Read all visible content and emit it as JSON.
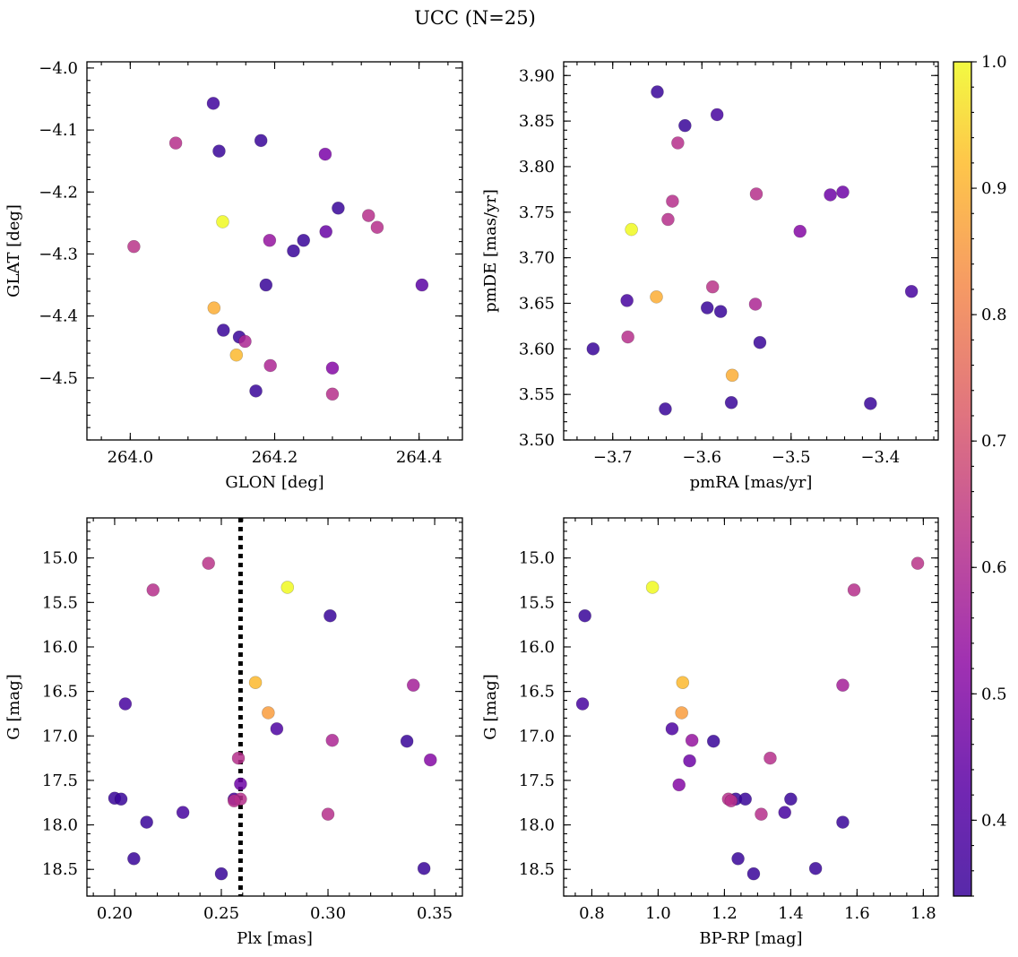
{
  "figure": {
    "title": "UCC (N=25)"
  },
  "colorbar": {
    "range": [
      0.34,
      1.0
    ],
    "ticks": [
      0.4,
      0.5,
      0.6,
      0.7,
      0.8,
      0.9,
      1.0
    ],
    "tick_labels": [
      "0.4",
      "0.5",
      "0.6",
      "0.7",
      "0.8",
      "0.9",
      "1.0"
    ],
    "colormap": "plasma",
    "alpha": 0.85
  },
  "chart_data": [
    {
      "id": "glon-glat",
      "type": "scatter",
      "xlabel": "GLON [deg]",
      "ylabel": "GLAT [deg]",
      "xlim": [
        263.94,
        264.46
      ],
      "ylim": [
        -4.6,
        -3.99
      ],
      "y_inverted": false,
      "xticks": [
        264.0,
        264.2,
        264.4
      ],
      "xtick_labels": [
        "264.0",
        "264.2",
        "264.4"
      ],
      "yticks": [
        -4.5,
        -4.4,
        -4.3,
        -4.2,
        -4.1,
        -4.0
      ],
      "ytick_labels": [
        "−4.5",
        "−4.4",
        "−4.3",
        "−4.2",
        "−4.1",
        "−4.0"
      ],
      "x_minor_step": 0.04,
      "y_minor_step": 0.02,
      "points": [
        {
          "x": 264.115,
          "y": -4.057,
          "c": 0.41
        },
        {
          "x": 264.063,
          "y": -4.121,
          "c": 0.62
        },
        {
          "x": 264.123,
          "y": -4.134,
          "c": 0.4
        },
        {
          "x": 264.181,
          "y": -4.117,
          "c": 0.4
        },
        {
          "x": 264.27,
          "y": -4.139,
          "c": 0.5
        },
        {
          "x": 264.128,
          "y": -4.248,
          "c": 1.0
        },
        {
          "x": 264.288,
          "y": -4.226,
          "c": 0.4
        },
        {
          "x": 264.33,
          "y": -4.238,
          "c": 0.62
        },
        {
          "x": 264.342,
          "y": -4.257,
          "c": 0.62
        },
        {
          "x": 264.005,
          "y": -4.288,
          "c": 0.63
        },
        {
          "x": 264.193,
          "y": -4.278,
          "c": 0.55
        },
        {
          "x": 264.24,
          "y": -4.278,
          "c": 0.4
        },
        {
          "x": 264.226,
          "y": -4.295,
          "c": 0.4
        },
        {
          "x": 264.271,
          "y": -4.264,
          "c": 0.47
        },
        {
          "x": 264.188,
          "y": -4.35,
          "c": 0.4
        },
        {
          "x": 264.404,
          "y": -4.35,
          "c": 0.45
        },
        {
          "x": 264.116,
          "y": -4.387,
          "c": 0.88
        },
        {
          "x": 264.129,
          "y": -4.423,
          "c": 0.4
        },
        {
          "x": 264.151,
          "y": -4.434,
          "c": 0.4
        },
        {
          "x": 264.159,
          "y": -4.441,
          "c": 0.6
        },
        {
          "x": 264.147,
          "y": -4.463,
          "c": 0.9
        },
        {
          "x": 264.194,
          "y": -4.48,
          "c": 0.6
        },
        {
          "x": 264.28,
          "y": -4.484,
          "c": 0.52
        },
        {
          "x": 264.174,
          "y": -4.521,
          "c": 0.4
        },
        {
          "x": 264.28,
          "y": -4.526,
          "c": 0.62
        }
      ]
    },
    {
      "id": "pmra-pmde",
      "type": "scatter",
      "xlabel": "pmRA [mas/yr]",
      "ylabel": "pmDE [mas/yr]",
      "xlim": [
        -3.755,
        -3.335
      ],
      "ylim": [
        3.5,
        3.915
      ],
      "y_inverted": false,
      "xticks": [
        -3.7,
        -3.6,
        -3.5,
        -3.4
      ],
      "xtick_labels": [
        "−3.7",
        "−3.6",
        "−3.5",
        "−3.4"
      ],
      "yticks": [
        3.5,
        3.55,
        3.6,
        3.65,
        3.7,
        3.75,
        3.8,
        3.85,
        3.9
      ],
      "ytick_labels": [
        "3.50",
        "3.55",
        "3.60",
        "3.65",
        "3.70",
        "3.75",
        "3.80",
        "3.85",
        "3.90"
      ],
      "x_minor_step": 0.02,
      "y_minor_step": 0.01,
      "points": [
        {
          "x": -3.65,
          "y": 3.882,
          "c": 0.4
        },
        {
          "x": -3.583,
          "y": 3.857,
          "c": 0.42
        },
        {
          "x": -3.619,
          "y": 3.845,
          "c": 0.4
        },
        {
          "x": -3.627,
          "y": 3.826,
          "c": 0.62
        },
        {
          "x": -3.539,
          "y": 3.77,
          "c": 0.62
        },
        {
          "x": -3.456,
          "y": 3.769,
          "c": 0.48
        },
        {
          "x": -3.442,
          "y": 3.772,
          "c": 0.48
        },
        {
          "x": -3.633,
          "y": 3.762,
          "c": 0.62
        },
        {
          "x": -3.638,
          "y": 3.742,
          "c": 0.62
        },
        {
          "x": -3.679,
          "y": 3.731,
          "c": 1.0
        },
        {
          "x": -3.49,
          "y": 3.729,
          "c": 0.52
        },
        {
          "x": -3.588,
          "y": 3.668,
          "c": 0.63
        },
        {
          "x": -3.365,
          "y": 3.663,
          "c": 0.42
        },
        {
          "x": -3.684,
          "y": 3.653,
          "c": 0.42
        },
        {
          "x": -3.651,
          "y": 3.657,
          "c": 0.88
        },
        {
          "x": -3.594,
          "y": 3.645,
          "c": 0.4
        },
        {
          "x": -3.579,
          "y": 3.641,
          "c": 0.4
        },
        {
          "x": -3.54,
          "y": 3.649,
          "c": 0.6
        },
        {
          "x": -3.683,
          "y": 3.613,
          "c": 0.62
        },
        {
          "x": -3.535,
          "y": 3.607,
          "c": 0.4
        },
        {
          "x": -3.722,
          "y": 3.6,
          "c": 0.4
        },
        {
          "x": -3.566,
          "y": 3.571,
          "c": 0.88
        },
        {
          "x": -3.567,
          "y": 3.541,
          "c": 0.4
        },
        {
          "x": -3.411,
          "y": 3.54,
          "c": 0.4
        },
        {
          "x": -3.641,
          "y": 3.534,
          "c": 0.4
        }
      ]
    },
    {
      "id": "plx-g",
      "type": "scatter",
      "xlabel": "Plx [mas]",
      "ylabel": "G [mag]",
      "xlim": [
        0.187,
        0.363
      ],
      "ylim": [
        14.55,
        18.8
      ],
      "y_inverted": true,
      "xticks": [
        0.2,
        0.25,
        0.3,
        0.35
      ],
      "xtick_labels": [
        "0.20",
        "0.25",
        "0.30",
        "0.35"
      ],
      "yticks": [
        15.0,
        15.5,
        16.0,
        16.5,
        17.0,
        17.5,
        18.0,
        18.5
      ],
      "ytick_labels": [
        "15.0",
        "15.5",
        "16.0",
        "16.5",
        "17.0",
        "17.5",
        "18.0",
        "18.5"
      ],
      "x_minor_step": 0.01,
      "y_minor_step": 0.1,
      "vline": 0.259,
      "points": [
        {
          "x": 0.244,
          "y": 15.06,
          "c": 0.63
        },
        {
          "x": 0.218,
          "y": 15.36,
          "c": 0.62
        },
        {
          "x": 0.281,
          "y": 15.33,
          "c": 1.0
        },
        {
          "x": 0.301,
          "y": 15.65,
          "c": 0.4
        },
        {
          "x": 0.266,
          "y": 16.4,
          "c": 0.9
        },
        {
          "x": 0.34,
          "y": 16.43,
          "c": 0.58
        },
        {
          "x": 0.205,
          "y": 16.64,
          "c": 0.42
        },
        {
          "x": 0.272,
          "y": 16.74,
          "c": 0.85
        },
        {
          "x": 0.276,
          "y": 16.92,
          "c": 0.43
        },
        {
          "x": 0.302,
          "y": 17.05,
          "c": 0.6
        },
        {
          "x": 0.337,
          "y": 17.06,
          "c": 0.4
        },
        {
          "x": 0.348,
          "y": 17.27,
          "c": 0.52
        },
        {
          "x": 0.258,
          "y": 17.25,
          "c": 0.62
        },
        {
          "x": 0.259,
          "y": 17.54,
          "c": 0.48
        },
        {
          "x": 0.2,
          "y": 17.7,
          "c": 0.4
        },
        {
          "x": 0.203,
          "y": 17.71,
          "c": 0.4
        },
        {
          "x": 0.256,
          "y": 17.71,
          "c": 0.42
        },
        {
          "x": 0.259,
          "y": 17.71,
          "c": 0.62
        },
        {
          "x": 0.256,
          "y": 17.73,
          "c": 0.62
        },
        {
          "x": 0.232,
          "y": 17.86,
          "c": 0.42
        },
        {
          "x": 0.3,
          "y": 17.88,
          "c": 0.62
        },
        {
          "x": 0.215,
          "y": 17.97,
          "c": 0.4
        },
        {
          "x": 0.209,
          "y": 18.38,
          "c": 0.4
        },
        {
          "x": 0.345,
          "y": 18.49,
          "c": 0.4
        },
        {
          "x": 0.25,
          "y": 18.55,
          "c": 0.4
        }
      ]
    },
    {
      "id": "bprp-g",
      "type": "scatter",
      "xlabel": "BP-RP [mag]",
      "ylabel": "G [mag]",
      "xlim": [
        0.715,
        1.845
      ],
      "ylim": [
        14.55,
        18.8
      ],
      "y_inverted": true,
      "xticks": [
        0.8,
        1.0,
        1.2,
        1.4,
        1.6,
        1.8
      ],
      "xtick_labels": [
        "0.8",
        "1.0",
        "1.2",
        "1.4",
        "1.6",
        "1.8"
      ],
      "yticks": [
        15.0,
        15.5,
        16.0,
        16.5,
        17.0,
        17.5,
        18.0,
        18.5
      ],
      "ytick_labels": [
        "15.0",
        "15.5",
        "16.0",
        "16.5",
        "17.0",
        "17.5",
        "18.0",
        "18.5"
      ],
      "x_minor_step": 0.05,
      "y_minor_step": 0.1,
      "points": [
        {
          "x": 1.783,
          "y": 15.06,
          "c": 0.63
        },
        {
          "x": 0.983,
          "y": 15.33,
          "c": 1.0
        },
        {
          "x": 1.591,
          "y": 15.36,
          "c": 0.62
        },
        {
          "x": 0.779,
          "y": 15.65,
          "c": 0.4
        },
        {
          "x": 1.074,
          "y": 16.4,
          "c": 0.9
        },
        {
          "x": 1.557,
          "y": 16.43,
          "c": 0.58
        },
        {
          "x": 0.772,
          "y": 16.64,
          "c": 0.42
        },
        {
          "x": 1.071,
          "y": 16.74,
          "c": 0.85
        },
        {
          "x": 1.042,
          "y": 16.92,
          "c": 0.43
        },
        {
          "x": 1.102,
          "y": 17.05,
          "c": 0.55
        },
        {
          "x": 1.167,
          "y": 17.06,
          "c": 0.4
        },
        {
          "x": 1.338,
          "y": 17.25,
          "c": 0.62
        },
        {
          "x": 1.095,
          "y": 17.28,
          "c": 0.48
        },
        {
          "x": 1.063,
          "y": 17.55,
          "c": 0.52
        },
        {
          "x": 1.212,
          "y": 17.71,
          "c": 0.62
        },
        {
          "x": 1.22,
          "y": 17.73,
          "c": 0.62
        },
        {
          "x": 1.234,
          "y": 17.71,
          "c": 0.4
        },
        {
          "x": 1.263,
          "y": 17.71,
          "c": 0.4
        },
        {
          "x": 1.4,
          "y": 17.71,
          "c": 0.4
        },
        {
          "x": 1.311,
          "y": 17.88,
          "c": 0.62
        },
        {
          "x": 1.382,
          "y": 17.86,
          "c": 0.42
        },
        {
          "x": 1.557,
          "y": 17.97,
          "c": 0.4
        },
        {
          "x": 1.241,
          "y": 18.38,
          "c": 0.4
        },
        {
          "x": 1.475,
          "y": 18.49,
          "c": 0.4
        },
        {
          "x": 1.288,
          "y": 18.55,
          "c": 0.4
        }
      ]
    }
  ]
}
